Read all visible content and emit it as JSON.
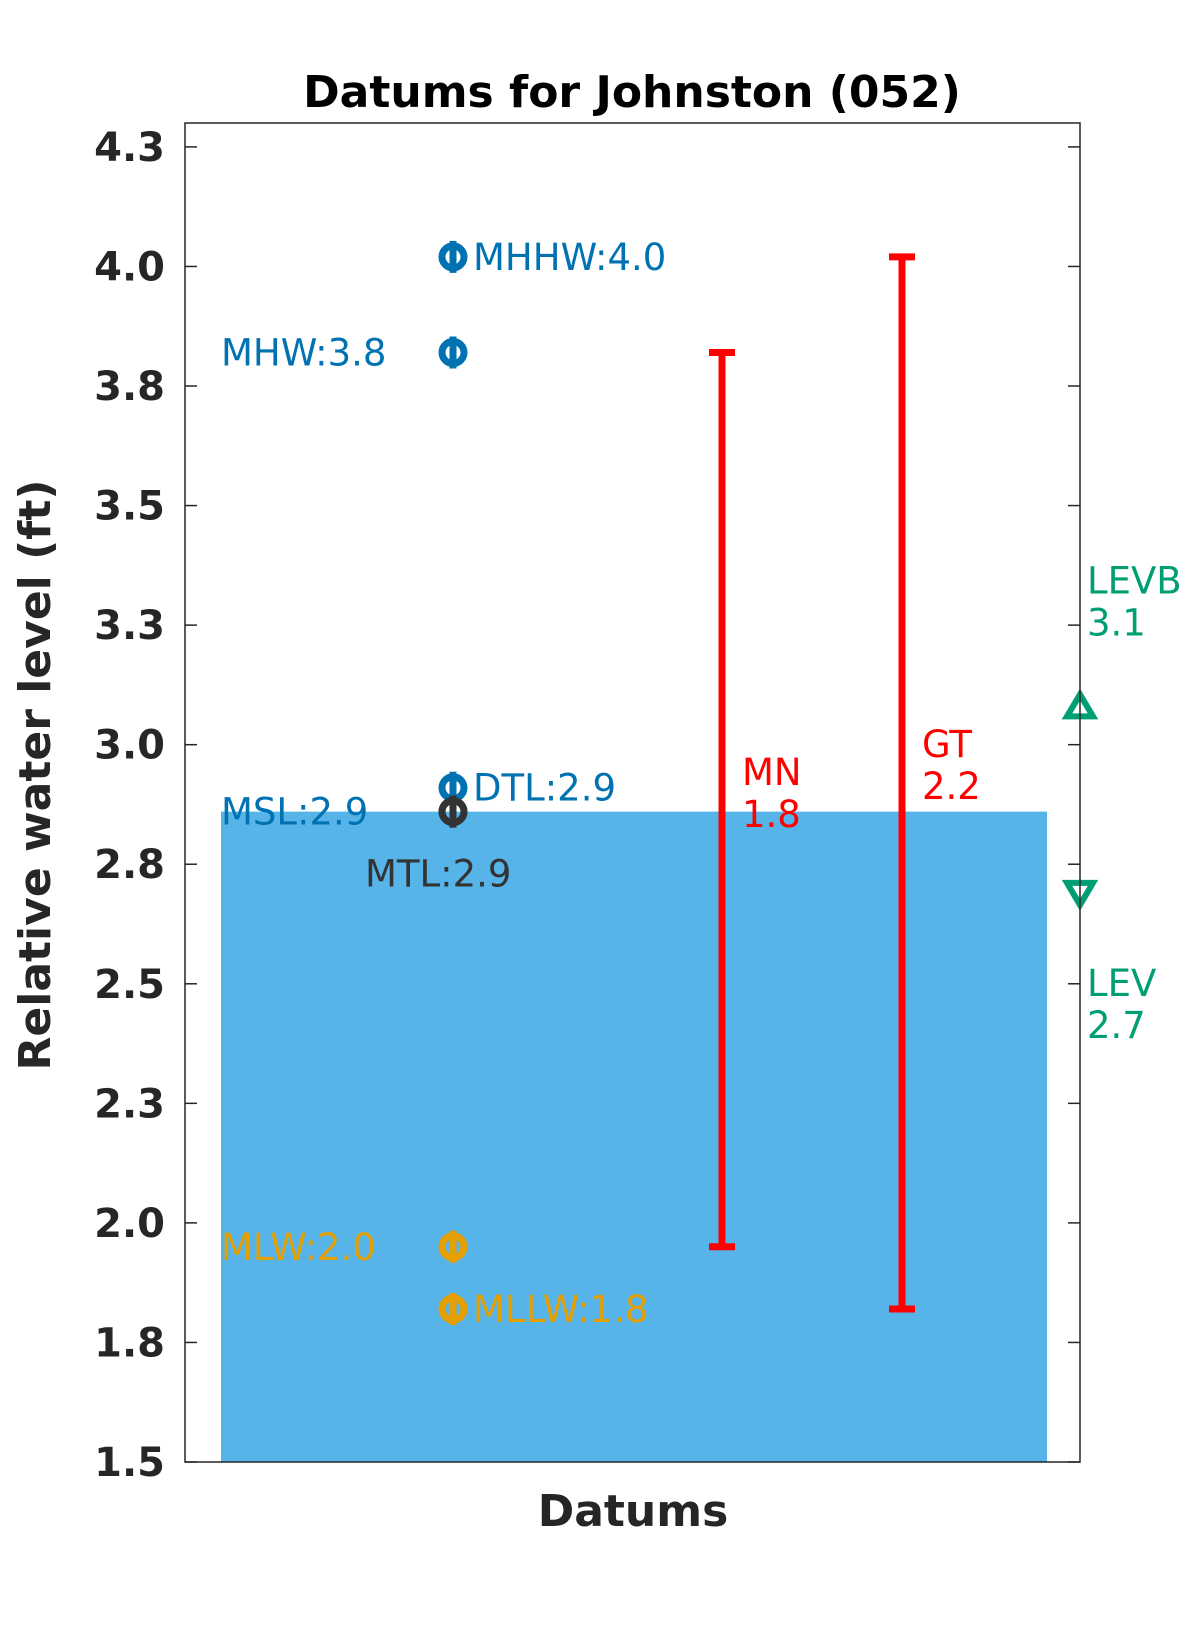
{
  "chart_data": {
    "type": "scatter",
    "title": "Datums for Johnston (052)",
    "xlabel": "Datums",
    "ylabel": "Relative water level (ft)",
    "ylim": [
      1.5,
      4.3
    ],
    "yticks": [
      "1.5",
      "1.8",
      "2.0",
      "2.3",
      "2.5",
      "2.8",
      "3.0",
      "3.3",
      "3.5",
      "3.8",
      "4.0",
      "4.3"
    ],
    "ytick_values": [
      1.5,
      1.75,
      2.0,
      2.25,
      2.5,
      2.75,
      3.0,
      3.25,
      3.5,
      3.75,
      4.0,
      4.25
    ],
    "grid": false,
    "water_level_bar": {
      "value": 2.86,
      "color": "#56B4E9"
    },
    "datums": [
      {
        "name": "MHHW",
        "label": "MHHW:4.0",
        "value": 4.02,
        "color": "#0072B2",
        "label_side": "right"
      },
      {
        "name": "MHW",
        "label": "MHW:3.8",
        "value": 3.82,
        "color": "#0072B2",
        "label_side": "left"
      },
      {
        "name": "DTL",
        "label": "DTL:2.9",
        "value": 2.91,
        "color": "#0072B2",
        "label_side": "right"
      },
      {
        "name": "MSL",
        "label": "MSL:2.9",
        "value": 2.86,
        "color": "#0072B2",
        "label_side": "left"
      },
      {
        "name": "MTL",
        "label": "MTL:2.9",
        "value": 2.86,
        "color": "#333333",
        "label_side": "below"
      },
      {
        "name": "MLW",
        "label": "MLW:2.0",
        "value": 1.95,
        "color": "#E69F00",
        "label_side": "left"
      },
      {
        "name": "MLLW",
        "label": "MLLW:1.8",
        "value": 1.82,
        "color": "#E69F00",
        "label_side": "right"
      }
    ],
    "ranges": [
      {
        "name": "MN",
        "label_line1": "MN",
        "label_line2": "1.8",
        "low": 1.95,
        "high": 3.82,
        "color": "#FF0000"
      },
      {
        "name": "GT",
        "label_line1": "GT",
        "label_line2": "2.2",
        "low": 1.82,
        "high": 4.02,
        "color": "#FF0000"
      }
    ],
    "extremes": [
      {
        "name": "LEVB",
        "label_line1": "LEVB",
        "label_line2": "3.1",
        "value": 3.08,
        "marker": "triangle-up",
        "color": "#009E73"
      },
      {
        "name": "LEV",
        "label_line1": "LEV",
        "label_line2": "2.7",
        "value": 2.69,
        "marker": "triangle-down",
        "color": "#009E73"
      }
    ]
  }
}
